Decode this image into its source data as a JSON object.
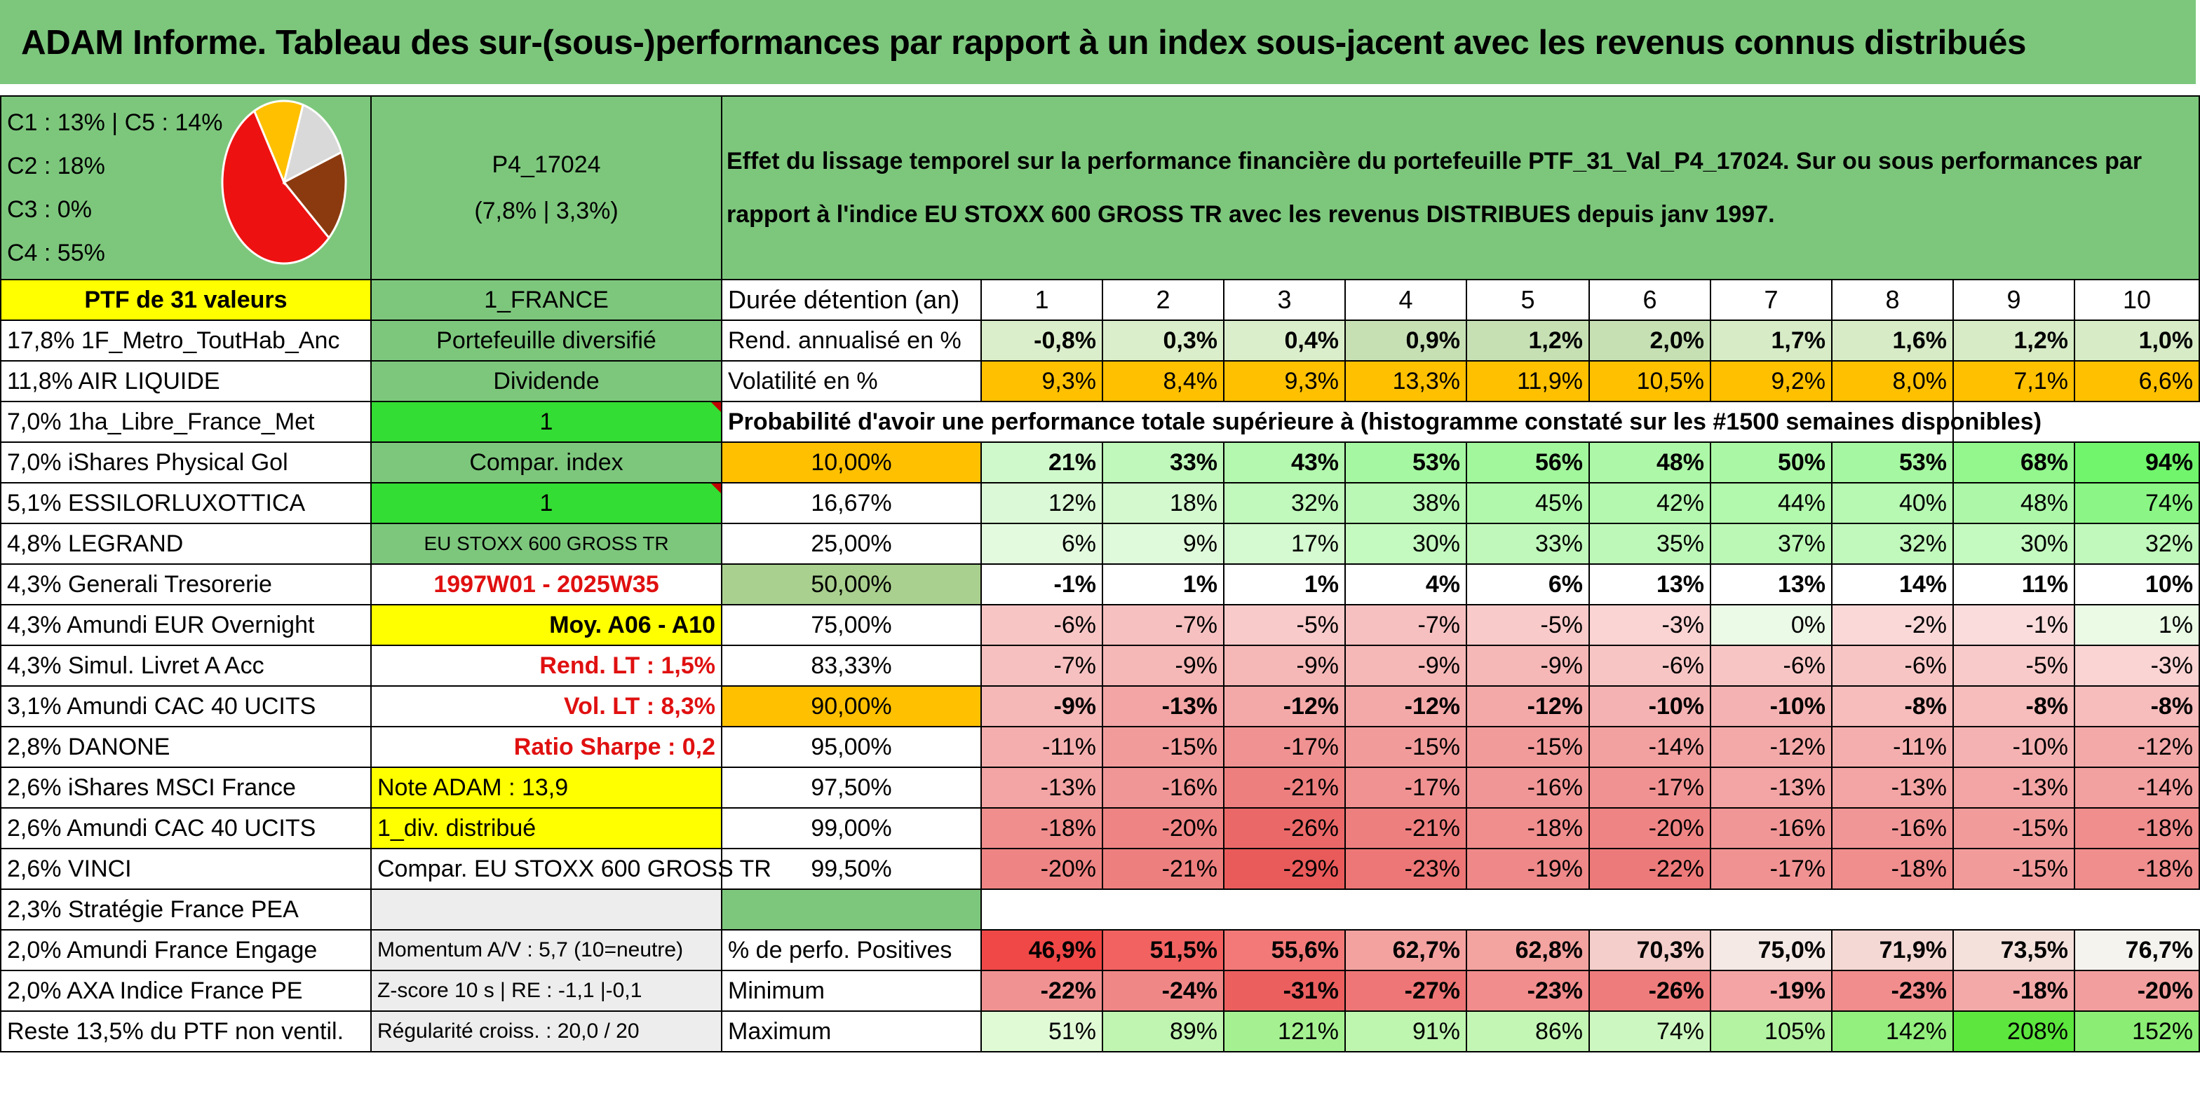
{
  "title": "ADAM Informe. Tableau des sur-(sous-)performances par rapport à un index sous-jacent avec les revenus connus distribués",
  "pie": {
    "legend": [
      "C1 : 13% | C5 : 14%",
      "C2 : 18%",
      "C3 : 0%",
      "C4 : 55%"
    ],
    "slices": [
      {
        "name": "C4",
        "value": 55,
        "color": "#ee1111"
      },
      {
        "name": "C1",
        "value": 13,
        "color": "#ffc000"
      },
      {
        "name": "C5",
        "value": 14,
        "color": "#d9d9d9"
      },
      {
        "name": "C2",
        "value": 18,
        "color": "#8b3a0f"
      },
      {
        "name": "C3",
        "value": 0,
        "color": "#2e5fa8"
      }
    ]
  },
  "portfolio": {
    "code": "P4_17024",
    "perf": "(7,8% | 3,3%)",
    "description": "Effet du lissage temporel sur la performance financière du portefeuille PTF_31_Val_P4_17024. Sur ou sous performances par rapport à l'indice EU STOXX 600 GROSS TR avec les revenus DISTRIBUES depuis janv 1997."
  },
  "left_col": {
    "header": "PTF de 31 valeurs",
    "holdings": [
      "17,8% 1F_Metro_ToutHab_Anc",
      "11,8% AIR LIQUIDE",
      "7,0% 1ha_Libre_France_Met",
      "7,0% iShares Physical Gol",
      "5,1% ESSILORLUXOTTICA",
      "4,8% LEGRAND",
      "4,3% Generali Tresorerie",
      "4,3% Amundi EUR Overnight",
      "4,3% Simul. Livret A Acc",
      "3,1% Amundi CAC 40 UCITS",
      "2,8% DANONE",
      "2,6% iShares MSCI France",
      "2,6% Amundi CAC 40 UCITS",
      "2,6% VINCI",
      "2,3% Stratégie France PEA",
      "2,0% Amundi France Engage",
      "2,0% AXA Indice France PE",
      "Reste 13,5% du PTF non ventil."
    ]
  },
  "mid_col": [
    "1_FRANCE",
    "Portefeuille diversifié",
    "Dividende",
    "1",
    "Compar. index",
    "1",
    "EU STOXX 600 GROSS TR",
    "1997W01 - 2025W35",
    "Moy. A06 - A10",
    "Rend. LT : 1,5%",
    "Vol. LT : 8,3%",
    "Ratio Sharpe : 0,2",
    "Note ADAM : 13,9",
    "1_div. distribué",
    "Compar. EU STOXX 600 GROSS TR",
    "",
    "Momentum A/V : 5,7 (10=neutre)",
    "Z-score 10 s | RE : -1,1 |-0,1",
    "Régularité croiss. : 20,0 / 20"
  ],
  "stats": {
    "duration_label": "Durée détention (an)",
    "years": [
      "1",
      "2",
      "3",
      "4",
      "5",
      "6",
      "7",
      "8",
      "9",
      "10"
    ],
    "rend_label": "Rend. annualisé en %",
    "rend": [
      "-0,8%",
      "0,3%",
      "0,4%",
      "0,9%",
      "1,2%",
      "2,0%",
      "1,7%",
      "1,6%",
      "1,2%",
      "1,0%"
    ],
    "vol_label": "Volatilité en %",
    "vol": [
      "9,3%",
      "8,4%",
      "9,3%",
      "13,3%",
      "11,9%",
      "10,5%",
      "9,2%",
      "8,0%",
      "7,1%",
      "6,6%"
    ],
    "prob_label": "Probabilité d'avoir une performance totale supérieure à (histogramme constaté sur les #1500 semaines disponibles)"
  },
  "probability_table": {
    "quantiles": [
      "10,00%",
      "16,67%",
      "25,00%",
      "50,00%",
      "75,00%",
      "83,33%",
      "90,00%",
      "95,00%",
      "97,50%",
      "99,00%",
      "99,50%"
    ],
    "rows": [
      [
        "21%",
        "33%",
        "43%",
        "53%",
        "56%",
        "48%",
        "50%",
        "53%",
        "68%",
        "94%"
      ],
      [
        "12%",
        "18%",
        "32%",
        "38%",
        "45%",
        "42%",
        "44%",
        "40%",
        "48%",
        "74%"
      ],
      [
        "6%",
        "9%",
        "17%",
        "30%",
        "33%",
        "35%",
        "37%",
        "32%",
        "30%",
        "32%"
      ],
      [
        "-1%",
        "1%",
        "1%",
        "4%",
        "6%",
        "13%",
        "13%",
        "14%",
        "11%",
        "10%"
      ],
      [
        "-6%",
        "-7%",
        "-5%",
        "-7%",
        "-5%",
        "-3%",
        "0%",
        "-2%",
        "-1%",
        "1%"
      ],
      [
        "-7%",
        "-9%",
        "-9%",
        "-9%",
        "-9%",
        "-6%",
        "-6%",
        "-6%",
        "-5%",
        "-3%"
      ],
      [
        "-9%",
        "-13%",
        "-12%",
        "-12%",
        "-12%",
        "-10%",
        "-10%",
        "-8%",
        "-8%",
        "-8%"
      ],
      [
        "-11%",
        "-15%",
        "-17%",
        "-15%",
        "-15%",
        "-14%",
        "-12%",
        "-11%",
        "-10%",
        "-12%"
      ],
      [
        "-13%",
        "-16%",
        "-21%",
        "-17%",
        "-16%",
        "-17%",
        "-13%",
        "-13%",
        "-13%",
        "-14%"
      ],
      [
        "-18%",
        "-20%",
        "-26%",
        "-21%",
        "-18%",
        "-20%",
        "-16%",
        "-16%",
        "-15%",
        "-18%"
      ],
      [
        "-20%",
        "-21%",
        "-29%",
        "-23%",
        "-19%",
        "-22%",
        "-17%",
        "-18%",
        "-15%",
        "-18%"
      ]
    ]
  },
  "summary": {
    "pos_label": "% de perfo. Positives",
    "pos": [
      "46,9%",
      "51,5%",
      "55,6%",
      "62,7%",
      "62,8%",
      "70,3%",
      "75,0%",
      "71,9%",
      "73,5%",
      "76,7%"
    ],
    "min_label": "Minimum",
    "min": [
      "-22%",
      "-24%",
      "-31%",
      "-27%",
      "-23%",
      "-26%",
      "-19%",
      "-23%",
      "-18%",
      "-20%"
    ],
    "max_label": "Maximum",
    "max": [
      "51%",
      "89%",
      "121%",
      "91%",
      "86%",
      "74%",
      "105%",
      "142%",
      "208%",
      "152%"
    ]
  },
  "colors": {
    "header_green": "#7dc77d",
    "yellow": "#ffff00",
    "bright_green": "#33dd33",
    "orange": "#ffc000",
    "red_text": "#e01010"
  }
}
